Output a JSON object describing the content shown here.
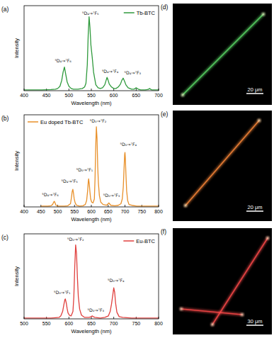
{
  "chart_data": [
    {
      "type": "line",
      "panel_label": "(a)",
      "x_label": "Wavelength (nm)",
      "y_label": "Intensity",
      "xlim": [
        400,
        700
      ],
      "xticks": [
        400,
        450,
        500,
        550,
        600,
        650,
        700
      ],
      "ylim": [
        0,
        1.15
      ],
      "tick_labels": "x",
      "legend": "upper right",
      "x": [
        400,
        420,
        440,
        460,
        470,
        475,
        480,
        484,
        487,
        490,
        493,
        496,
        500,
        505,
        510,
        520,
        530,
        535,
        538,
        541,
        543,
        545,
        547,
        549,
        552,
        555,
        560,
        565,
        570,
        575,
        580,
        583,
        585,
        587,
        590,
        595,
        600,
        605,
        610,
        615,
        618,
        621,
        624,
        627,
        632,
        640,
        645,
        648,
        650,
        652,
        655,
        660,
        670,
        675,
        678,
        680,
        682,
        685,
        690,
        700
      ],
      "series": [
        {
          "name": "Tb-BTC",
          "color": "#2f9a3c",
          "values": [
            0.01,
            0.01,
            0.01,
            0.015,
            0.02,
            0.03,
            0.06,
            0.14,
            0.25,
            0.32,
            0.22,
            0.12,
            0.06,
            0.03,
            0.02,
            0.02,
            0.03,
            0.05,
            0.1,
            0.35,
            0.75,
            1.0,
            0.85,
            0.62,
            0.45,
            0.25,
            0.08,
            0.04,
            0.03,
            0.04,
            0.08,
            0.14,
            0.18,
            0.15,
            0.09,
            0.05,
            0.03,
            0.03,
            0.05,
            0.09,
            0.14,
            0.17,
            0.13,
            0.08,
            0.04,
            0.02,
            0.02,
            0.03,
            0.04,
            0.03,
            0.02,
            0.01,
            0.01,
            0.015,
            0.02,
            0.03,
            0.02,
            0.01,
            0.01,
            0.01
          ]
        }
      ],
      "annotations": [
        {
          "text": "⁵D₄→⁷F₆",
          "x": 487,
          "y": 0.38
        },
        {
          "text": "⁵D₄→⁷F₅",
          "x": 548,
          "y": 1.03
        },
        {
          "text": "⁵D₄→⁷F₄",
          "x": 592,
          "y": 0.24
        },
        {
          "text": "⁵D₄→⁷F₃",
          "x": 642,
          "y": 0.22
        }
      ]
    },
    {
      "type": "line",
      "panel_label": "(b)",
      "x_label": "Wavelength (nm)",
      "y_label": "Intensity",
      "xlim": [
        400,
        800
      ],
      "xticks": [
        400,
        450,
        500,
        550,
        600,
        650,
        700,
        750,
        800
      ],
      "ylim": [
        0,
        1.15
      ],
      "tick_labels": "x",
      "legend": "upper left",
      "x": [
        450,
        470,
        480,
        485,
        488,
        490,
        492,
        495,
        500,
        520,
        530,
        538,
        541,
        543,
        545,
        547,
        549,
        552,
        556,
        565,
        575,
        582,
        586,
        589,
        591,
        592,
        594,
        596,
        598,
        601,
        605,
        609,
        611,
        613,
        615,
        617,
        619,
        621,
        624,
        628,
        635,
        645,
        650,
        652,
        654,
        658,
        670,
        680,
        688,
        692,
        695,
        697,
        699,
        700,
        701,
        703,
        705,
        708,
        712,
        720,
        735,
        750,
        775,
        800
      ],
      "series": [
        {
          "name": "Eu doped Tb-BTC",
          "color": "#e8902a",
          "values": [
            0.01,
            0.01,
            0.015,
            0.03,
            0.06,
            0.07,
            0.05,
            0.02,
            0.01,
            0.01,
            0.015,
            0.04,
            0.12,
            0.19,
            0.22,
            0.17,
            0.1,
            0.05,
            0.02,
            0.01,
            0.015,
            0.03,
            0.08,
            0.2,
            0.32,
            0.35,
            0.28,
            0.18,
            0.1,
            0.06,
            0.05,
            0.1,
            0.35,
            0.75,
            1.0,
            0.85,
            0.5,
            0.3,
            0.14,
            0.06,
            0.03,
            0.02,
            0.04,
            0.05,
            0.04,
            0.02,
            0.015,
            0.02,
            0.04,
            0.1,
            0.25,
            0.45,
            0.65,
            0.68,
            0.62,
            0.4,
            0.2,
            0.08,
            0.03,
            0.02,
            0.01,
            0.01,
            0.01,
            0.01
          ]
        }
      ],
      "annotations": [
        {
          "text": "⁵D₄→⁷F₆",
          "x": 478,
          "y": 0.13
        },
        {
          "text": "⁵D₄→⁷F₅",
          "x": 535,
          "y": 0.3
        },
        {
          "text": "⁵D₀→⁷F₁",
          "x": 580,
          "y": 0.44
        },
        {
          "text": "⁵D₀→⁷F₂",
          "x": 620,
          "y": 1.05
        },
        {
          "text": "⁵D₀→⁷F₃",
          "x": 660,
          "y": 0.12
        },
        {
          "text": "⁵D₀→⁷F₄",
          "x": 710,
          "y": 0.76
        }
      ]
    },
    {
      "type": "line",
      "panel_label": "(c)",
      "x_label": "Wavelength (nm)",
      "y_label": "Intensity",
      "xlim": [
        500,
        800
      ],
      "xticks": [
        500,
        550,
        600,
        650,
        700,
        750,
        800
      ],
      "ylim": [
        0,
        1.15
      ],
      "tick_labels": "x",
      "legend": "upper right",
      "x": [
        500,
        540,
        560,
        570,
        578,
        582,
        586,
        589,
        591,
        592,
        594,
        596,
        598,
        601,
        605,
        609,
        611,
        613,
        615,
        617,
        619,
        621,
        624,
        628,
        635,
        645,
        650,
        652,
        654,
        658,
        670,
        680,
        688,
        692,
        695,
        698,
        700,
        702,
        704,
        707,
        712,
        720,
        740,
        770,
        800
      ],
      "series": [
        {
          "name": "Eu-BTC",
          "color": "#e0403e",
          "values": [
            0.01,
            0.01,
            0.01,
            0.015,
            0.02,
            0.04,
            0.1,
            0.2,
            0.26,
            0.27,
            0.22,
            0.14,
            0.08,
            0.05,
            0.04,
            0.1,
            0.3,
            0.7,
            1.0,
            0.88,
            0.55,
            0.3,
            0.13,
            0.05,
            0.02,
            0.02,
            0.03,
            0.04,
            0.03,
            0.02,
            0.01,
            0.02,
            0.04,
            0.1,
            0.2,
            0.33,
            0.42,
            0.36,
            0.22,
            0.09,
            0.03,
            0.02,
            0.01,
            0.01,
            0.01
          ]
        }
      ],
      "annotations": [
        {
          "text": "⁵D₀→⁷F₁",
          "x": 585,
          "y": 0.34
        },
        {
          "text": "⁵D₀→⁷F₂",
          "x": 615,
          "y": 1.05
        },
        {
          "text": "⁵D₀→⁷F₃",
          "x": 660,
          "y": 0.1
        },
        {
          "text": "⁵D₀→⁷F₄",
          "x": 705,
          "y": 0.5
        }
      ]
    }
  ],
  "images": [
    {
      "panel_label": "(d)",
      "scale_bar": "20 μm",
      "color": "#5fe06a"
    },
    {
      "panel_label": "(e)",
      "scale_bar": "20 μm",
      "color": "#ff8a3a"
    },
    {
      "panel_label": "(f)",
      "scale_bar": "30 μm",
      "color": "#ff4a4a"
    }
  ]
}
